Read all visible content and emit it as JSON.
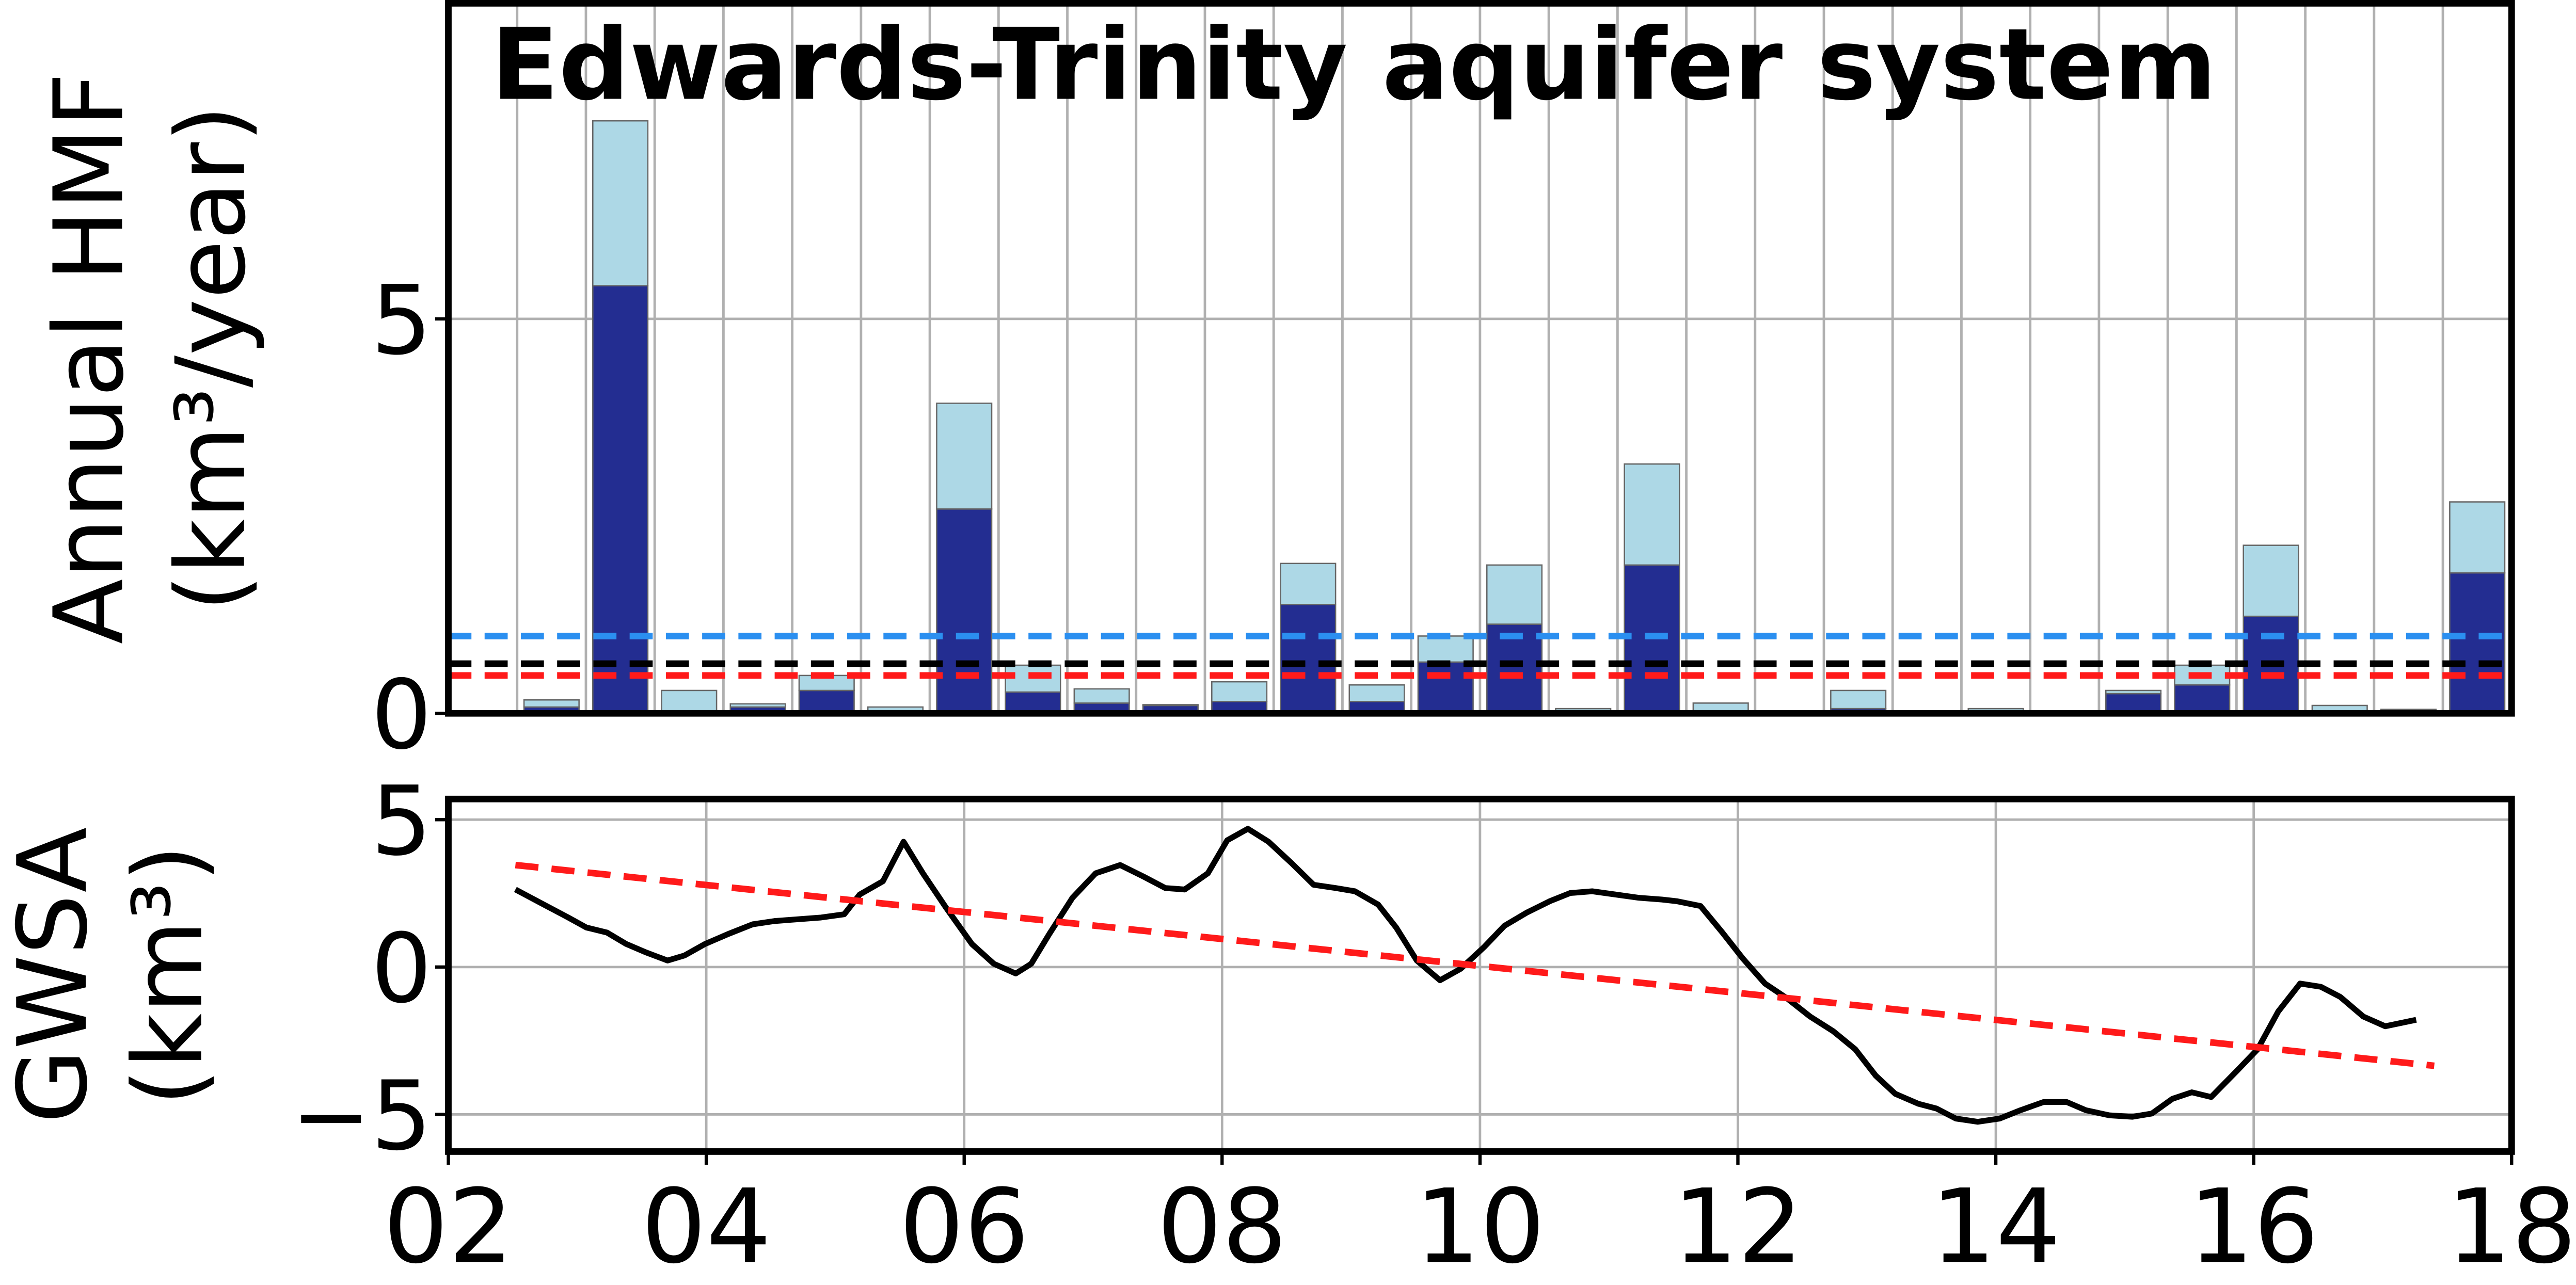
{
  "chart_data": [
    {
      "type": "bar",
      "title": "Edwards-Trinity aquifer system",
      "ylabel": [
        "Annual HMF",
        "(km³/year)"
      ],
      "stacked": true,
      "categories": [
        null,
        null,
        null,
        null,
        null,
        null,
        null,
        null,
        null,
        null,
        null,
        null,
        null,
        null,
        null,
        null,
        null,
        null,
        null,
        null,
        null,
        null,
        null,
        null,
        null,
        null,
        null,
        null,
        null,
        null
      ],
      "series": [
        {
          "color": "#232d91",
          "values": [
            0,
            0.08,
            5.42,
            0,
            0.08,
            0.29,
            0,
            2.59,
            0.27,
            0.13,
            0.1,
            0.15,
            1.38,
            0.15,
            0.65,
            1.13,
            0,
            1.88,
            0,
            0,
            0.06,
            0,
            0,
            0,
            0.25,
            0.36,
            1.23,
            0,
            0.04,
            1.78
          ]
        },
        {
          "color": "#add8e6",
          "values": [
            0,
            0.09,
            2.09,
            0.29,
            0.04,
            0.19,
            0.08,
            1.34,
            0.34,
            0.18,
            0.01,
            0.25,
            0.52,
            0.21,
            0.33,
            0.75,
            0.06,
            1.28,
            0.13,
            0,
            0.23,
            0,
            0.06,
            0,
            0.04,
            0.25,
            0.9,
            0.1,
            0.01,
            0.9
          ]
        }
      ],
      "reference_lines": [
        {
          "value": 0.98,
          "color": "#2b8ff0"
        },
        {
          "value": 0.63,
          "color": "#000000"
        },
        {
          "value": 0.48,
          "color": "#ff1a1a"
        }
      ],
      "ylim": [
        0,
        9
      ],
      "yticks": [
        0,
        5
      ],
      "grid": true
    },
    {
      "type": "line",
      "ylabel": [
        "GWSA",
        "(km³)"
      ],
      "series": [
        {
          "color": "#000000",
          "dashed": false,
          "x": [
            2002.52,
            2002.74,
            2002.93,
            2003.07,
            2003.23,
            2003.38,
            2003.53,
            2003.7,
            2003.83,
            2003.99,
            2004.17,
            2004.36,
            2004.53,
            2004.71,
            2004.89,
            2005.07,
            2005.19,
            2005.37,
            2005.53,
            2005.68,
            2005.86,
            2006.06,
            2006.23,
            2006.4,
            2006.52,
            2006.66,
            2006.84,
            2007.02,
            2007.21,
            2007.39,
            2007.56,
            2007.71,
            2007.89,
            2008.04,
            2008.2,
            2008.36,
            2008.54,
            2008.71,
            2008.88,
            2009.03,
            2009.21,
            2009.35,
            2009.51,
            2009.69,
            2009.85,
            2010.03,
            2010.19,
            2010.36,
            2010.54,
            2010.7,
            2010.87,
            2011.05,
            2011.23,
            2011.41,
            2011.53,
            2011.71,
            2011.88,
            2012.04,
            2012.21,
            2012.38,
            2012.56,
            2012.74,
            2012.91,
            2013.07,
            2013.22,
            2013.4,
            2013.54,
            2013.69,
            2013.86,
            2014.03,
            2014.19,
            2014.37,
            2014.55,
            2014.7,
            2014.88,
            2015.06,
            2015.21,
            2015.37,
            2015.52,
            2015.67,
            2015.87,
            2016.03,
            2016.19,
            2016.36,
            2016.52,
            2016.67,
            2016.85,
            2017.02,
            2017.26
          ],
          "values": [
            2.63,
            2.12,
            1.68,
            1.34,
            1.17,
            0.78,
            0.5,
            0.22,
            0.39,
            0.78,
            1.12,
            1.45,
            1.56,
            1.62,
            1.68,
            1.79,
            2.46,
            2.91,
            4.25,
            3.18,
            2.01,
            0.78,
            0.11,
            -0.22,
            0.11,
            1.12,
            2.35,
            3.18,
            3.46,
            3.07,
            2.68,
            2.63,
            3.18,
            4.3,
            4.69,
            4.25,
            3.52,
            2.79,
            2.68,
            2.57,
            2.12,
            1.34,
            0.22,
            -0.45,
            -0.06,
            0.67,
            1.4,
            1.84,
            2.23,
            2.51,
            2.57,
            2.46,
            2.35,
            2.29,
            2.23,
            2.07,
            1.17,
            0.28,
            -0.56,
            -1.06,
            -1.68,
            -2.18,
            -2.79,
            -3.69,
            -4.3,
            -4.64,
            -4.8,
            -5.14,
            -5.25,
            -5.14,
            -4.86,
            -4.58,
            -4.58,
            -4.86,
            -5.03,
            -5.08,
            -4.97,
            -4.47,
            -4.25,
            -4.41,
            -3.52,
            -2.79,
            -1.51,
            -0.56,
            -0.67,
            -1.01,
            -1.68,
            -2.01,
            -1.79
          ]
        },
        {
          "color": "#ff1a1a",
          "dashed": true,
          "x": [
            2002.52,
            2017.4
          ],
          "values": [
            3.46,
            -3.35
          ]
        }
      ],
      "xlim": [
        2002,
        2018
      ],
      "xticks": [
        {
          "value": 2002,
          "label": "02"
        },
        {
          "value": 2004,
          "label": "04"
        },
        {
          "value": 2006,
          "label": "06"
        },
        {
          "value": 2008,
          "label": "08"
        },
        {
          "value": 2010,
          "label": "10"
        },
        {
          "value": 2012,
          "label": "12"
        },
        {
          "value": 2014,
          "label": "14"
        },
        {
          "value": 2016,
          "label": "16"
        },
        {
          "value": 2018,
          "label": "18"
        }
      ],
      "ylim": [
        -6.26,
        5.7
      ],
      "yticks": [
        {
          "value": -5,
          "label": "−5"
        },
        0,
        5
      ],
      "grid": true
    }
  ]
}
